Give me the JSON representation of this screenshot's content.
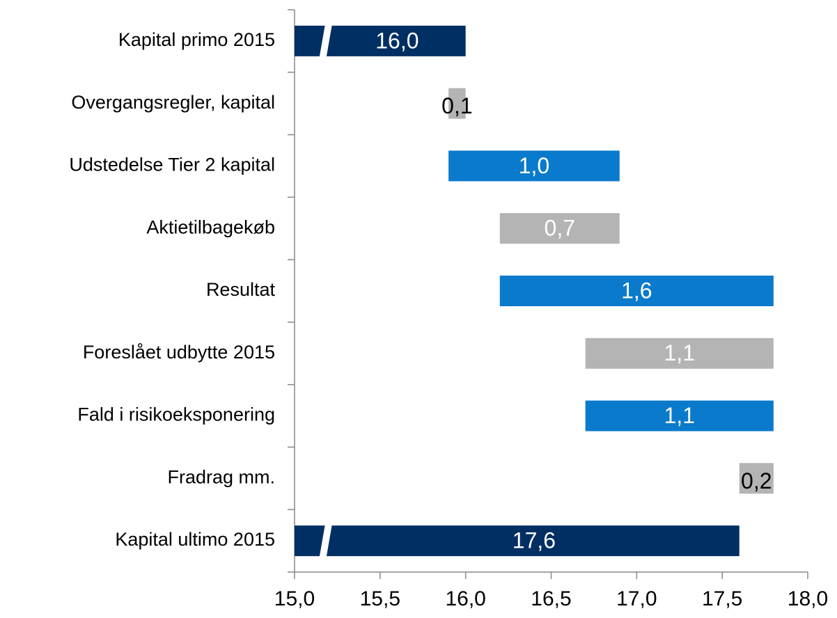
{
  "chart_data": {
    "type": "waterfall",
    "orientation": "horizontal",
    "categories": [
      "Kapital primo 2015",
      "Overgangsregler, kapital",
      "Udstedelse Tier 2 kapital",
      "Aktietilbagekøb",
      "Resultat",
      "Foreslået udbytte 2015",
      "Fald i risikoeksponering",
      "Fradrag mm.",
      "Kapital ultimo 2015"
    ],
    "kinds": [
      "total",
      "decrease",
      "increase",
      "decrease",
      "increase",
      "decrease",
      "increase",
      "decrease",
      "total"
    ],
    "values": [
      16.0,
      0.1,
      1.0,
      0.7,
      1.6,
      1.1,
      1.1,
      0.2,
      17.6
    ],
    "value_labels": [
      "16,0",
      "0,1",
      "1,0",
      "0,7",
      "1,6",
      "1,1",
      "1,1",
      "0,2",
      "17,6"
    ],
    "colors": {
      "total": "#002f63",
      "increase": "#0a7acc",
      "decrease": "#b4b4b4"
    },
    "xlim": [
      15.0,
      18.0
    ],
    "xticks": [
      {
        "value": 15.0,
        "label": "15,0"
      },
      {
        "value": 15.5,
        "label": "15,5"
      },
      {
        "value": 16.0,
        "label": "16,0"
      },
      {
        "value": 16.5,
        "label": "16,5"
      },
      {
        "value": 17.0,
        "label": "17,0"
      },
      {
        "value": 17.5,
        "label": "17,5"
      },
      {
        "value": 18.0,
        "label": "18,0"
      }
    ],
    "axis_break": true
  }
}
